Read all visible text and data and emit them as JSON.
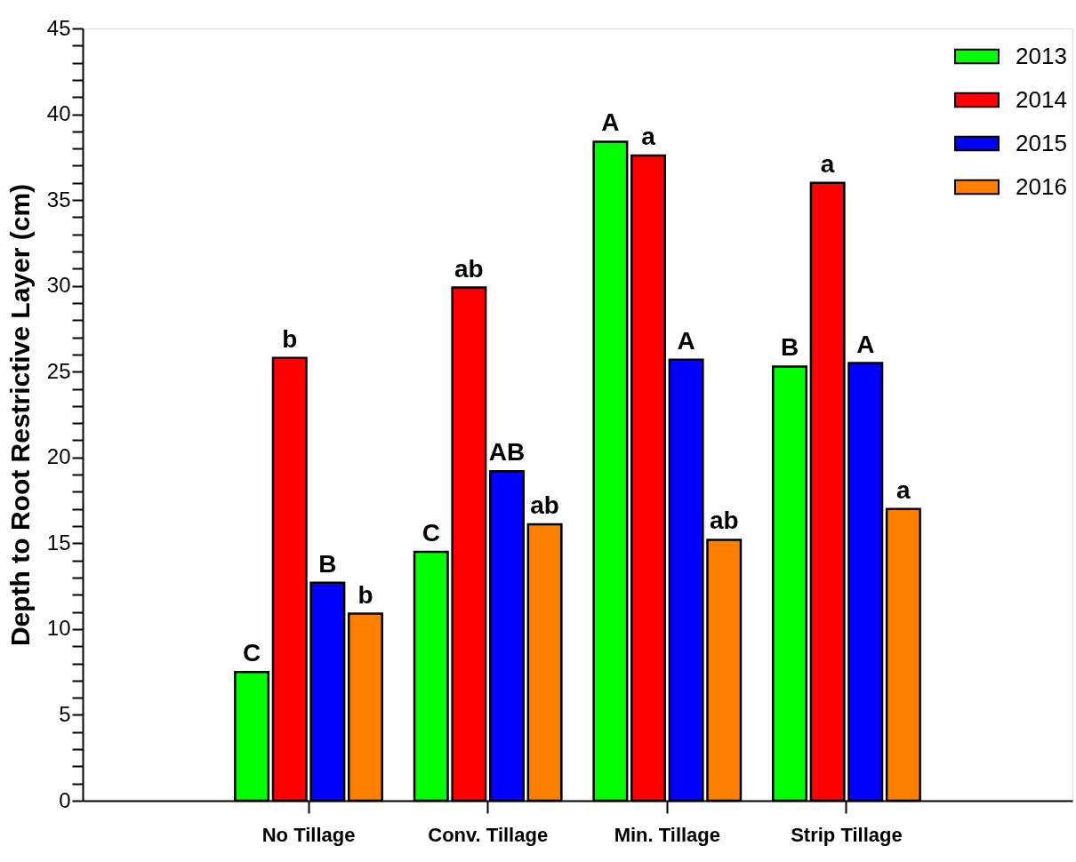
{
  "chart_data": {
    "type": "bar",
    "ylabel": "Depth to Root Restrictive Layer (cm)",
    "categories": [
      "No Tillage",
      "Conv. Tillage",
      "Min. Tillage",
      "Strip Tillage"
    ],
    "series": [
      {
        "name": "2013",
        "color": "#00ff00",
        "values": [
          7.5,
          14.5,
          38.4,
          25.3
        ],
        "value_labels": [
          "C",
          "C",
          "A",
          "B"
        ]
      },
      {
        "name": "2014",
        "color": "#ff0000",
        "values": [
          25.8,
          29.9,
          37.6,
          36.0
        ],
        "value_labels": [
          "b",
          "ab",
          "a",
          "a"
        ]
      },
      {
        "name": "2015",
        "color": "#0000ff",
        "values": [
          12.7,
          19.2,
          25.7,
          25.5
        ],
        "value_labels": [
          "B",
          "AB",
          "A",
          "A"
        ]
      },
      {
        "name": "2016",
        "color": "#ff8000",
        "values": [
          10.9,
          16.1,
          15.2,
          17.0
        ],
        "value_labels": [
          "b",
          "ab",
          "ab",
          "a"
        ]
      }
    ],
    "ylim": [
      0,
      45
    ],
    "yticks": [
      0,
      {
        "value": 1,
        "label": null
      },
      {
        "value": 2,
        "label": null
      },
      {
        "value": 3,
        "label": null
      },
      {
        "value": 4,
        "label": null
      },
      5,
      {
        "value": 6,
        "label": null
      },
      {
        "value": 7,
        "label": null
      },
      {
        "value": 8,
        "label": null
      },
      {
        "value": 9,
        "label": null
      },
      10,
      {
        "value": 11,
        "label": null
      },
      {
        "value": 12,
        "label": null
      },
      {
        "value": 13,
        "label": null
      },
      {
        "value": 14,
        "label": null
      },
      15,
      {
        "value": 16,
        "label": null
      },
      {
        "value": 17,
        "label": null
      },
      {
        "value": 18,
        "label": null
      },
      {
        "value": 19,
        "label": null
      },
      20,
      {
        "value": 21,
        "label": null
      },
      {
        "value": 22,
        "label": null
      },
      {
        "value": 23,
        "label": null
      },
      {
        "value": 24,
        "label": null
      },
      25,
      {
        "value": 26,
        "label": null
      },
      {
        "value": 27,
        "label": null
      },
      {
        "value": 28,
        "label": null
      },
      {
        "value": 29,
        "label": null
      },
      30,
      {
        "value": 31,
        "label": null
      },
      {
        "value": 32,
        "label": null
      },
      {
        "value": 33,
        "label": null
      },
      {
        "value": 34,
        "label": null
      },
      35,
      {
        "value": 36,
        "label": null
      },
      {
        "value": 37,
        "label": null
      },
      {
        "value": 38,
        "label": null
      },
      {
        "value": 39,
        "label": null
      },
      40,
      {
        "value": 41,
        "label": null
      },
      {
        "value": 42,
        "label": null
      },
      {
        "value": 43,
        "label": null
      },
      {
        "value": 44,
        "label": null
      },
      45
    ],
    "grid": false,
    "legend": "top right"
  }
}
